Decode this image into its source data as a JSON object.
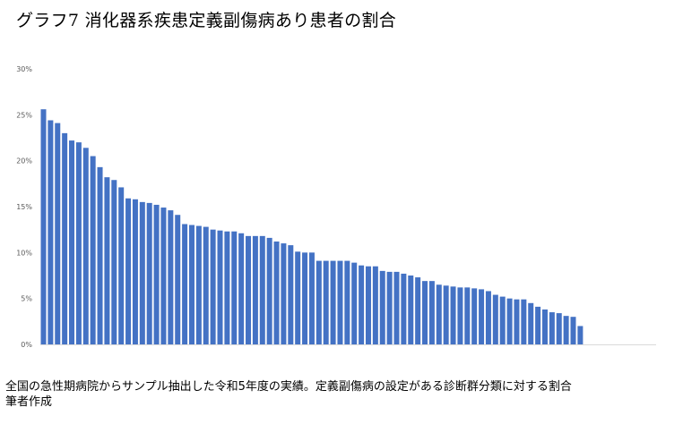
{
  "title": "グラフ7  消化器系疾患定義副傷病あり患者の割合",
  "footnote": {
    "line1": "全国の急性期病院からサンプル抽出した令和5年度の実績。定義副傷病の設定がある診断群分類に対する割合",
    "line2": "筆者作成"
  },
  "chart_data": {
    "type": "bar",
    "title": "グラフ7  消化器系疾患定義副傷病あり患者の割合",
    "xlabel": "",
    "ylabel": "",
    "ylim": [
      0,
      30
    ],
    "yticks": [
      0,
      5,
      10,
      15,
      20,
      25,
      30
    ],
    "ytick_labels": [
      "0%",
      "5%",
      "10%",
      "15%",
      "20%",
      "25%",
      "30%"
    ],
    "grid": false,
    "legend": "none",
    "bar_color": "#4472c4",
    "axis_color": "#d9d9d9",
    "values": [
      25.6,
      24.4,
      24.1,
      23.0,
      22.2,
      22.0,
      21.4,
      20.5,
      19.3,
      18.2,
      17.9,
      17.1,
      15.9,
      15.8,
      15.5,
      15.4,
      15.2,
      14.9,
      14.6,
      14.1,
      13.1,
      13.0,
      12.9,
      12.8,
      12.5,
      12.4,
      12.3,
      12.3,
      12.1,
      11.8,
      11.8,
      11.8,
      11.6,
      11.2,
      11.0,
      10.8,
      10.1,
      10.0,
      10.0,
      9.1,
      9.1,
      9.1,
      9.1,
      9.1,
      8.9,
      8.6,
      8.5,
      8.5,
      8.0,
      7.9,
      7.9,
      7.7,
      7.5,
      7.3,
      6.9,
      6.9,
      6.5,
      6.4,
      6.3,
      6.2,
      6.2,
      6.1,
      6.0,
      5.8,
      5.4,
      5.2,
      5.0,
      4.9,
      4.9,
      4.5,
      4.1,
      3.8,
      3.5,
      3.4,
      3.1,
      3.0,
      2.0
    ]
  }
}
